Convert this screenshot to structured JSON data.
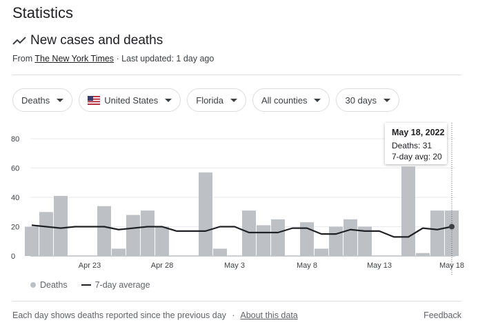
{
  "page_title": "Statistics",
  "section": {
    "title": "New cases and deaths",
    "icon": "trending-line-icon"
  },
  "source": {
    "prefix": "From",
    "publisher": "The New York Times",
    "suffix": "· Last updated: 1 day ago"
  },
  "filters": [
    {
      "label": "Deaths"
    },
    {
      "label": "United States",
      "icon": "us-flag-icon"
    },
    {
      "label": "Florida"
    },
    {
      "label": "All counties"
    },
    {
      "label": "30 days"
    }
  ],
  "tooltip": {
    "date": "May 18, 2022",
    "deaths": "Deaths: 31",
    "avg": "7-day avg: 20"
  },
  "legend": {
    "bars": "Deaths",
    "line": "7-day average"
  },
  "footer": {
    "note": "Each day shows deaths reported since the previous day",
    "separator": "·",
    "link": "About this data",
    "feedback": "Feedback"
  },
  "colors": {
    "bar": "#bdc1c6",
    "line": "#202124",
    "grid": "#e8eaed"
  },
  "chart_data": {
    "type": "bar",
    "x": [
      "Apr 19",
      "Apr 20",
      "Apr 21",
      "Apr 22",
      "Apr 23",
      "Apr 24",
      "Apr 25",
      "Apr 26",
      "Apr 27",
      "Apr 28",
      "Apr 29",
      "Apr 30",
      "May 1",
      "May 2",
      "May 3",
      "May 4",
      "May 5",
      "May 6",
      "May 7",
      "May 8",
      "May 9",
      "May 10",
      "May 11",
      "May 12",
      "May 13",
      "May 14",
      "May 15",
      "May 16",
      "May 17",
      "May 18"
    ],
    "x_tick_labels": [
      "Apr 23",
      "Apr 28",
      "May 3",
      "May 8",
      "May 13",
      "May 18"
    ],
    "series": [
      {
        "name": "Deaths",
        "type": "bar",
        "values": [
          20,
          30,
          41,
          0,
          0,
          34,
          5,
          28,
          31,
          20,
          0,
          0,
          57,
          5,
          0,
          31,
          21,
          25,
          0,
          23,
          5,
          20,
          25,
          20,
          0,
          0,
          61,
          2,
          31,
          31
        ]
      },
      {
        "name": "7-day average",
        "type": "line",
        "values": [
          21,
          20,
          19,
          20,
          20,
          20,
          18,
          19,
          20,
          20,
          17,
          17,
          17,
          20,
          20,
          16,
          16,
          16,
          19,
          19,
          15,
          15,
          18,
          17,
          17,
          13,
          13,
          19,
          18,
          20
        ]
      }
    ],
    "ylim": [
      0,
      80
    ],
    "yticks": [
      0,
      20,
      40,
      60,
      80
    ],
    "grid": true,
    "legend_position": "bottom-left",
    "highlight": {
      "date": "May 18",
      "deaths": 31,
      "avg": 20
    }
  }
}
